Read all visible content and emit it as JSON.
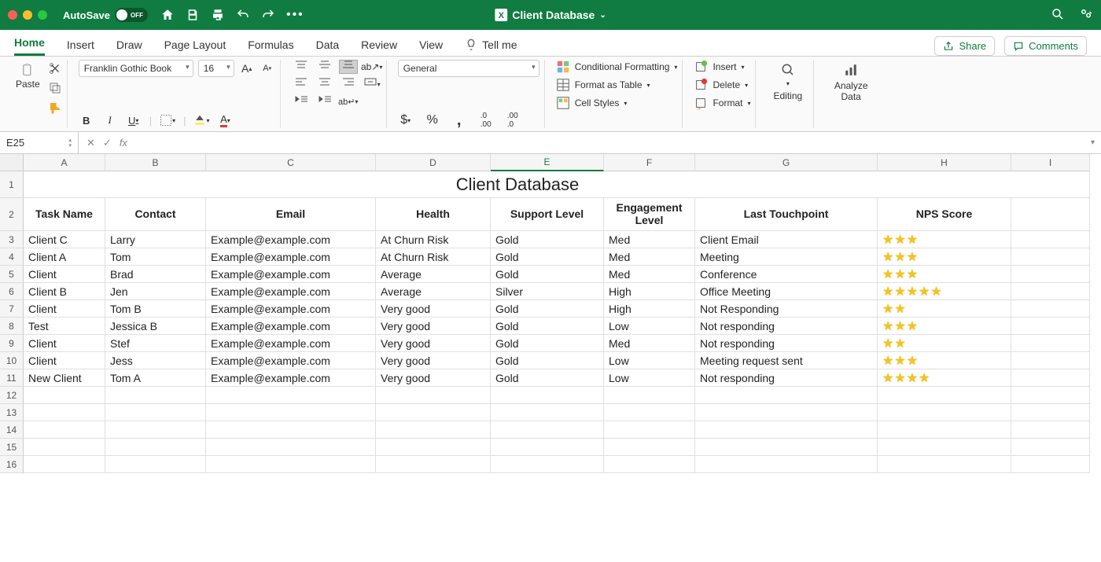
{
  "titlebar": {
    "autosave": "AutoSave",
    "autosave_state": "OFF",
    "filename": "Client Database"
  },
  "tabs": {
    "items": [
      "Home",
      "Insert",
      "Draw",
      "Page Layout",
      "Formulas",
      "Data",
      "Review",
      "View"
    ],
    "tellme": "Tell me",
    "share": "Share",
    "comments": "Comments"
  },
  "ribbon": {
    "paste": "Paste",
    "font_name": "Franklin Gothic Book",
    "font_size": "16",
    "number_format": "General",
    "cond_fmt": "Conditional Formatting",
    "fmt_table": "Format as Table",
    "cell_styles": "Cell Styles",
    "insert": "Insert",
    "delete": "Delete",
    "format": "Format",
    "editing": "Editing",
    "analyze": "Analyze Data"
  },
  "namebox": {
    "ref": "E25"
  },
  "columns": [
    "A",
    "B",
    "C",
    "D",
    "E",
    "F",
    "G",
    "H",
    "I"
  ],
  "sheet": {
    "title": "Client Database",
    "headers": [
      "Task Name",
      "Contact",
      "Email",
      "Health",
      "Support Level",
      "Engagement Level",
      "Last Touchpoint",
      "NPS Score"
    ],
    "rows": [
      {
        "task": "Client C",
        "contact": "Larry",
        "email": "Example@example.com",
        "health": "At Churn Risk",
        "support": "Gold",
        "engage": "Med",
        "touch": "Client Email",
        "nps": 3
      },
      {
        "task": "Client A",
        "contact": "Tom",
        "email": "Example@example.com",
        "health": "At Churn Risk",
        "support": "Gold",
        "engage": "Med",
        "touch": "Meeting",
        "nps": 3
      },
      {
        "task": "Client",
        "contact": "Brad",
        "email": "Example@example.com",
        "health": "Average",
        "support": "Gold",
        "engage": "Med",
        "touch": "Conference",
        "nps": 3
      },
      {
        "task": "Client B",
        "contact": "Jen",
        "email": "Example@example.com",
        "health": "Average",
        "support": "Silver",
        "engage": "High",
        "touch": "Office Meeting",
        "nps": 5
      },
      {
        "task": "Client",
        "contact": "Tom B",
        "email": "Example@example.com",
        "health": "Very good",
        "support": "Gold",
        "engage": "High",
        "touch": "Not Responding",
        "nps": 2
      },
      {
        "task": "Test",
        "contact": "Jessica B",
        "email": "Example@example.com",
        "health": "Very good",
        "support": "Gold",
        "engage": "Low",
        "touch": "Not responding",
        "nps": 3
      },
      {
        "task": "Client",
        "contact": "Stef",
        "email": "Example@example.com",
        "health": "Very good",
        "support": "Gold",
        "engage": "Med",
        "touch": "Not responding",
        "nps": 2
      },
      {
        "task": "Client",
        "contact": "Jess",
        "email": "Example@example.com",
        "health": "Very good",
        "support": "Gold",
        "engage": "Low",
        "touch": "Meeting request sent",
        "nps": 3
      },
      {
        "task": "New Client",
        "contact": "Tom A",
        "email": "Example@example.com",
        "health": "Very good",
        "support": "Gold",
        "engage": "Low",
        "touch": "Not responding",
        "nps": 4
      }
    ]
  },
  "colors": {
    "titlebar": "#107c41",
    "star": "#f5c518"
  }
}
